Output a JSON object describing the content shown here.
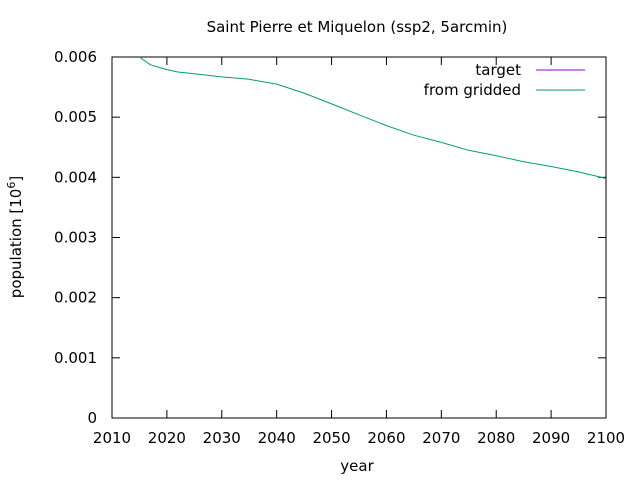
{
  "chart_data": {
    "type": "line",
    "title": "Saint Pierre et Miquelon (ssp2, 5arcmin)",
    "xlabel": "year",
    "ylabel_main": "population [10",
    "ylabel_exp": "6",
    "ylabel_close": "]",
    "xlim": [
      2010,
      2100
    ],
    "ylim": [
      0,
      0.006
    ],
    "xticks": [
      2010,
      2020,
      2030,
      2040,
      2050,
      2060,
      2070,
      2080,
      2090,
      2100
    ],
    "yticks": [
      0,
      0.001,
      0.002,
      0.003,
      0.004,
      0.005,
      0.006
    ],
    "ytick_labels": [
      "0",
      "0.001",
      "0.002",
      "0.003",
      "0.004",
      "0.005",
      "0.006"
    ],
    "grid": false,
    "legend_position": "top-right",
    "series": [
      {
        "name": "target",
        "color": "#9400d3",
        "x": [],
        "values": []
      },
      {
        "name": "from gridded",
        "color": "#009e73",
        "x": [
          2015,
          2017,
          2020,
          2022,
          2025,
          2030,
          2035,
          2038,
          2040,
          2045,
          2050,
          2055,
          2060,
          2065,
          2070,
          2075,
          2080,
          2085,
          2090,
          2095,
          2100
        ],
        "values": [
          0.006,
          0.00587,
          0.00579,
          0.00575,
          0.00572,
          0.00567,
          0.00563,
          0.00558,
          0.00555,
          0.0054,
          0.00522,
          0.00504,
          0.00486,
          0.0047,
          0.00458,
          0.00445,
          0.00436,
          0.00426,
          0.00418,
          0.00409,
          0.00398
        ]
      }
    ]
  }
}
